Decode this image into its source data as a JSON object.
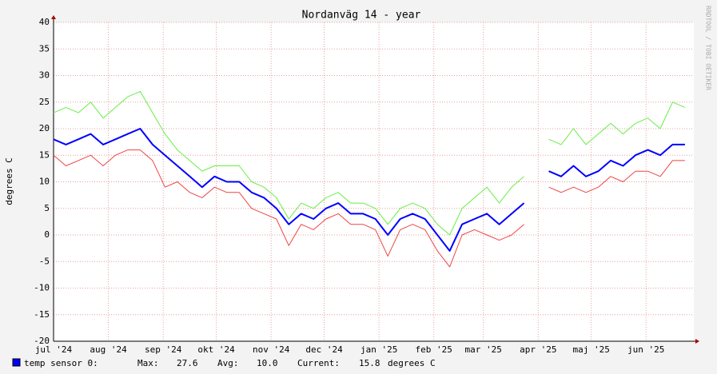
{
  "chart_data": {
    "type": "line",
    "title": "Nordanväg 14 - year",
    "ylabel": "degrees C",
    "side_text": "RRDTOOL / TOBI OETIKER",
    "x": [
      0,
      7,
      14,
      21,
      28,
      35,
      42,
      49,
      56,
      63,
      70,
      77,
      84,
      91,
      98,
      105,
      112,
      119,
      126,
      133,
      140,
      147,
      154,
      161,
      168,
      175,
      182,
      189,
      196,
      203,
      210,
      217,
      224,
      231,
      238,
      245,
      252,
      259,
      266,
      273,
      280,
      287,
      294,
      301,
      308,
      315,
      322,
      329,
      336,
      343,
      350,
      357
    ],
    "xlim": [
      0,
      362
    ],
    "xticks": [
      {
        "value": 0,
        "label": "jul '24"
      },
      {
        "value": 31,
        "label": "aug '24"
      },
      {
        "value": 62,
        "label": "sep '24"
      },
      {
        "value": 92,
        "label": "okt '24"
      },
      {
        "value": 123,
        "label": "nov '24"
      },
      {
        "value": 153,
        "label": "dec '24"
      },
      {
        "value": 184,
        "label": "jan '25"
      },
      {
        "value": 215,
        "label": "feb '25"
      },
      {
        "value": 243,
        "label": "mar '25"
      },
      {
        "value": 274,
        "label": "apr '25"
      },
      {
        "value": 304,
        "label": "maj '25"
      },
      {
        "value": 335,
        "label": "jun '25"
      }
    ],
    "ylim": [
      -20,
      40
    ],
    "yticks": [
      -20,
      -15,
      -10,
      -5,
      0,
      5,
      10,
      15,
      20,
      25,
      30,
      35,
      40
    ],
    "grid": true,
    "series": [
      {
        "color": "#66ee44",
        "values": [
          23,
          24,
          23,
          25,
          22,
          24,
          26,
          27,
          23,
          19,
          16,
          14,
          12,
          13,
          13,
          13,
          10,
          9,
          7,
          3,
          6,
          5,
          7,
          8,
          6,
          6,
          5,
          2,
          5,
          6,
          5,
          2,
          0,
          5,
          7,
          9,
          6,
          9,
          11,
          null,
          18,
          17,
          20,
          17,
          19,
          21,
          19,
          21,
          22,
          20,
          25,
          24
        ]
      },
      {
        "color": "#ee4444",
        "values": [
          15,
          13,
          14,
          15,
          13,
          15,
          16,
          16,
          14,
          9,
          10,
          8,
          7,
          9,
          8,
          8,
          5,
          4,
          3,
          -2,
          2,
          1,
          3,
          4,
          2,
          2,
          1,
          -4,
          1,
          2,
          1,
          -3,
          -6,
          0,
          1,
          0,
          -1,
          0,
          2,
          null,
          9,
          8,
          9,
          8,
          9,
          11,
          10,
          12,
          12,
          11,
          14,
          14
        ]
      },
      {
        "name": "temp sensor 0:",
        "color": "#0000ff",
        "values": [
          18,
          17,
          18,
          19,
          17,
          18,
          19,
          20,
          17,
          15,
          13,
          11,
          9,
          11,
          10,
          10,
          8,
          7,
          5,
          2,
          4,
          3,
          5,
          6,
          4,
          4,
          3,
          0,
          3,
          4,
          3,
          0,
          -3,
          2,
          3,
          4,
          2,
          4,
          6,
          null,
          12,
          11,
          13,
          11,
          12,
          14,
          13,
          15,
          16,
          15,
          17,
          17
        ]
      }
    ],
    "legend_stats": [
      {
        "label": "Max:",
        "value": {
          "value": 27.6,
          "label": "27.6"
        }
      },
      {
        "label": "Avg:",
        "value": {
          "value": 10.0,
          "label": "10.0"
        }
      },
      {
        "label": "Current:",
        "value": {
          "value": 15.8,
          "label": "15.8"
        }
      }
    ],
    "legend_unit": "degrees C"
  }
}
